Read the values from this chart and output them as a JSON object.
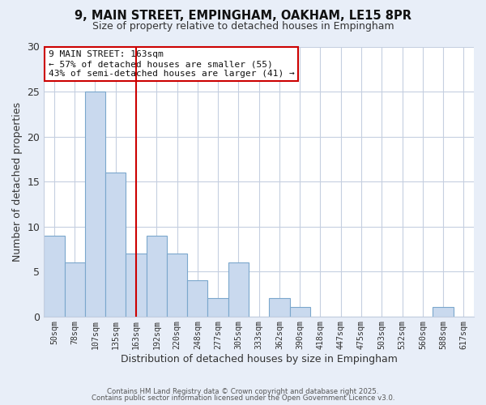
{
  "title_line1": "9, MAIN STREET, EMPINGHAM, OAKHAM, LE15 8PR",
  "title_line2": "Size of property relative to detached houses in Empingham",
  "xlabel": "Distribution of detached houses by size in Empingham",
  "ylabel": "Number of detached properties",
  "bar_labels": [
    "50sqm",
    "78sqm",
    "107sqm",
    "135sqm",
    "163sqm",
    "192sqm",
    "220sqm",
    "248sqm",
    "277sqm",
    "305sqm",
    "333sqm",
    "362sqm",
    "390sqm",
    "418sqm",
    "447sqm",
    "475sqm",
    "503sqm",
    "532sqm",
    "560sqm",
    "588sqm",
    "617sqm"
  ],
  "bar_values": [
    9,
    6,
    25,
    16,
    7,
    9,
    7,
    4,
    2,
    6,
    0,
    2,
    1,
    0,
    0,
    0,
    0,
    0,
    0,
    1,
    0
  ],
  "bar_color": "#c9d9ee",
  "bar_edge_color": "#7ba7cc",
  "vline_x_index": 4,
  "vline_color": "#cc0000",
  "ylim": [
    0,
    30
  ],
  "yticks": [
    0,
    5,
    10,
    15,
    20,
    25,
    30
  ],
  "annotation_title": "9 MAIN STREET: 163sqm",
  "annotation_line2": "← 57% of detached houses are smaller (55)",
  "annotation_line3": "43% of semi-detached houses are larger (41) →",
  "annotation_box_color": "#ffffff",
  "annotation_box_edge": "#cc0000",
  "footer_line1": "Contains HM Land Registry data © Crown copyright and database right 2025.",
  "footer_line2": "Contains public sector information licensed under the Open Government Licence v3.0.",
  "background_color": "#e8eef8",
  "plot_background": "#ffffff",
  "grid_color": "#c5cfe0"
}
